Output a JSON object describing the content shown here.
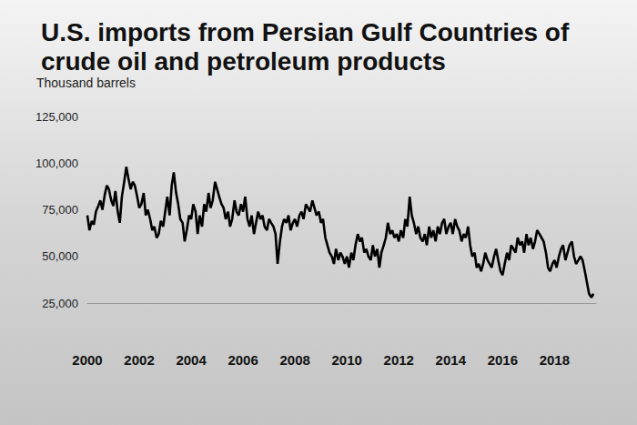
{
  "chart_data": {
    "type": "line",
    "title": "U.S. imports from Persian Gulf Countries of crude oil and petroleum products",
    "ylabel": "Thousand barrels",
    "color": "#000000",
    "grid": false,
    "xlim": [
      2000,
      2019.6
    ],
    "xticks": [
      2000,
      2002,
      2004,
      2006,
      2008,
      2010,
      2012,
      2014,
      2016,
      2018
    ],
    "ylim": [
      25000,
      125000
    ],
    "yticks": [
      {
        "value": 25000,
        "label": "25,000"
      },
      {
        "value": 50000,
        "label": "50,000"
      },
      {
        "value": 75000,
        "label": "75,000"
      },
      {
        "value": 100000,
        "label": "100,000"
      },
      {
        "value": 125000,
        "label": "125,000"
      }
    ],
    "x": [
      2000,
      2000.08,
      2000.17,
      2000.25,
      2000.33,
      2000.42,
      2000.5,
      2000.58,
      2000.67,
      2000.75,
      2000.83,
      2000.92,
      2001,
      2001.08,
      2001.17,
      2001.25,
      2001.33,
      2001.42,
      2001.5,
      2001.58,
      2001.67,
      2001.75,
      2001.83,
      2001.92,
      2002,
      2002.08,
      2002.17,
      2002.25,
      2002.33,
      2002.42,
      2002.5,
      2002.58,
      2002.67,
      2002.75,
      2002.83,
      2002.92,
      2003,
      2003.08,
      2003.17,
      2003.25,
      2003.33,
      2003.42,
      2003.5,
      2003.58,
      2003.67,
      2003.75,
      2003.83,
      2003.92,
      2004,
      2004.08,
      2004.17,
      2004.25,
      2004.33,
      2004.42,
      2004.5,
      2004.58,
      2004.67,
      2004.75,
      2004.83,
      2004.92,
      2005,
      2005.08,
      2005.17,
      2005.25,
      2005.33,
      2005.42,
      2005.5,
      2005.58,
      2005.67,
      2005.75,
      2005.83,
      2005.92,
      2006,
      2006.08,
      2006.17,
      2006.25,
      2006.33,
      2006.42,
      2006.5,
      2006.58,
      2006.67,
      2006.75,
      2006.83,
      2006.92,
      2007,
      2007.08,
      2007.17,
      2007.25,
      2007.33,
      2007.42,
      2007.5,
      2007.58,
      2007.67,
      2007.75,
      2007.83,
      2007.92,
      2008,
      2008.08,
      2008.17,
      2008.25,
      2008.33,
      2008.42,
      2008.5,
      2008.58,
      2008.67,
      2008.75,
      2008.83,
      2008.92,
      2009,
      2009.08,
      2009.17,
      2009.25,
      2009.33,
      2009.42,
      2009.5,
      2009.58,
      2009.67,
      2009.75,
      2009.83,
      2009.92,
      2010,
      2010.08,
      2010.17,
      2010.25,
      2010.33,
      2010.42,
      2010.5,
      2010.58,
      2010.67,
      2010.75,
      2010.83,
      2010.92,
      2011,
      2011.08,
      2011.17,
      2011.25,
      2011.33,
      2011.42,
      2011.5,
      2011.58,
      2011.67,
      2011.75,
      2011.83,
      2011.92,
      2012,
      2012.08,
      2012.17,
      2012.25,
      2012.33,
      2012.42,
      2012.5,
      2012.58,
      2012.67,
      2012.75,
      2012.83,
      2012.92,
      2013,
      2013.08,
      2013.17,
      2013.25,
      2013.33,
      2013.42,
      2013.5,
      2013.58,
      2013.67,
      2013.75,
      2013.83,
      2013.92,
      2014,
      2014.08,
      2014.17,
      2014.25,
      2014.33,
      2014.42,
      2014.5,
      2014.58,
      2014.67,
      2014.75,
      2014.83,
      2014.92,
      2015,
      2015.08,
      2015.17,
      2015.25,
      2015.33,
      2015.42,
      2015.5,
      2015.58,
      2015.67,
      2015.75,
      2015.83,
      2015.92,
      2016,
      2016.08,
      2016.17,
      2016.25,
      2016.33,
      2016.42,
      2016.5,
      2016.58,
      2016.67,
      2016.75,
      2016.83,
      2016.92,
      2017,
      2017.08,
      2017.17,
      2017.25,
      2017.33,
      2017.42,
      2017.5,
      2017.58,
      2017.67,
      2017.75,
      2017.83,
      2017.92,
      2018,
      2018.08,
      2018.17,
      2018.25,
      2018.33,
      2018.42,
      2018.5,
      2018.58,
      2018.67,
      2018.75,
      2018.83,
      2018.92,
      2019,
      2019.08,
      2019.17,
      2019.25,
      2019.33,
      2019.42,
      2019.5
    ],
    "values": [
      72000,
      64000,
      69000,
      67000,
      74000,
      77000,
      80000,
      75000,
      83000,
      88000,
      86000,
      80000,
      77000,
      85000,
      74000,
      68000,
      82000,
      90000,
      98000,
      92000,
      86000,
      90000,
      88000,
      82000,
      76000,
      78000,
      84000,
      72000,
      75000,
      70000,
      64000,
      66000,
      60000,
      62000,
      69000,
      66000,
      74000,
      82000,
      72000,
      88000,
      95000,
      84000,
      78000,
      70000,
      68000,
      58000,
      64000,
      72000,
      70000,
      78000,
      74000,
      62000,
      72000,
      66000,
      78000,
      74000,
      84000,
      76000,
      80000,
      90000,
      86000,
      82000,
      78000,
      76000,
      70000,
      74000,
      66000,
      70000,
      80000,
      74000,
      72000,
      78000,
      74000,
      82000,
      70000,
      66000,
      72000,
      62000,
      68000,
      74000,
      70000,
      72000,
      66000,
      64000,
      70000,
      68000,
      66000,
      62000,
      46000,
      58000,
      66000,
      70000,
      68000,
      72000,
      64000,
      68000,
      70000,
      66000,
      72000,
      74000,
      70000,
      78000,
      76000,
      74000,
      80000,
      76000,
      72000,
      74000,
      68000,
      70000,
      60000,
      56000,
      52000,
      50000,
      46000,
      54000,
      48000,
      52000,
      50000,
      46000,
      50000,
      44000,
      52000,
      48000,
      56000,
      62000,
      58000,
      60000,
      52000,
      54000,
      50000,
      48000,
      56000,
      50000,
      54000,
      44000,
      52000,
      56000,
      60000,
      68000,
      62000,
      64000,
      60000,
      62000,
      58000,
      64000,
      60000,
      70000,
      66000,
      82000,
      72000,
      68000,
      62000,
      66000,
      60000,
      58000,
      62000,
      56000,
      66000,
      60000,
      64000,
      58000,
      66000,
      62000,
      68000,
      70000,
      62000,
      66000,
      68000,
      62000,
      70000,
      66000,
      64000,
      58000,
      62000,
      60000,
      66000,
      56000,
      50000,
      52000,
      44000,
      46000,
      42000,
      46000,
      52000,
      48000,
      46000,
      44000,
      50000,
      54000,
      48000,
      42000,
      40000,
      46000,
      52000,
      48000,
      56000,
      54000,
      52000,
      60000,
      56000,
      58000,
      52000,
      62000,
      56000,
      60000,
      54000,
      58000,
      64000,
      62000,
      60000,
      58000,
      52000,
      44000,
      42000,
      46000,
      48000,
      44000,
      50000,
      54000,
      56000,
      48000,
      52000,
      56000,
      58000,
      50000,
      46000,
      48000,
      50000,
      48000,
      42000,
      36000,
      30000,
      28000,
      30000
    ]
  }
}
